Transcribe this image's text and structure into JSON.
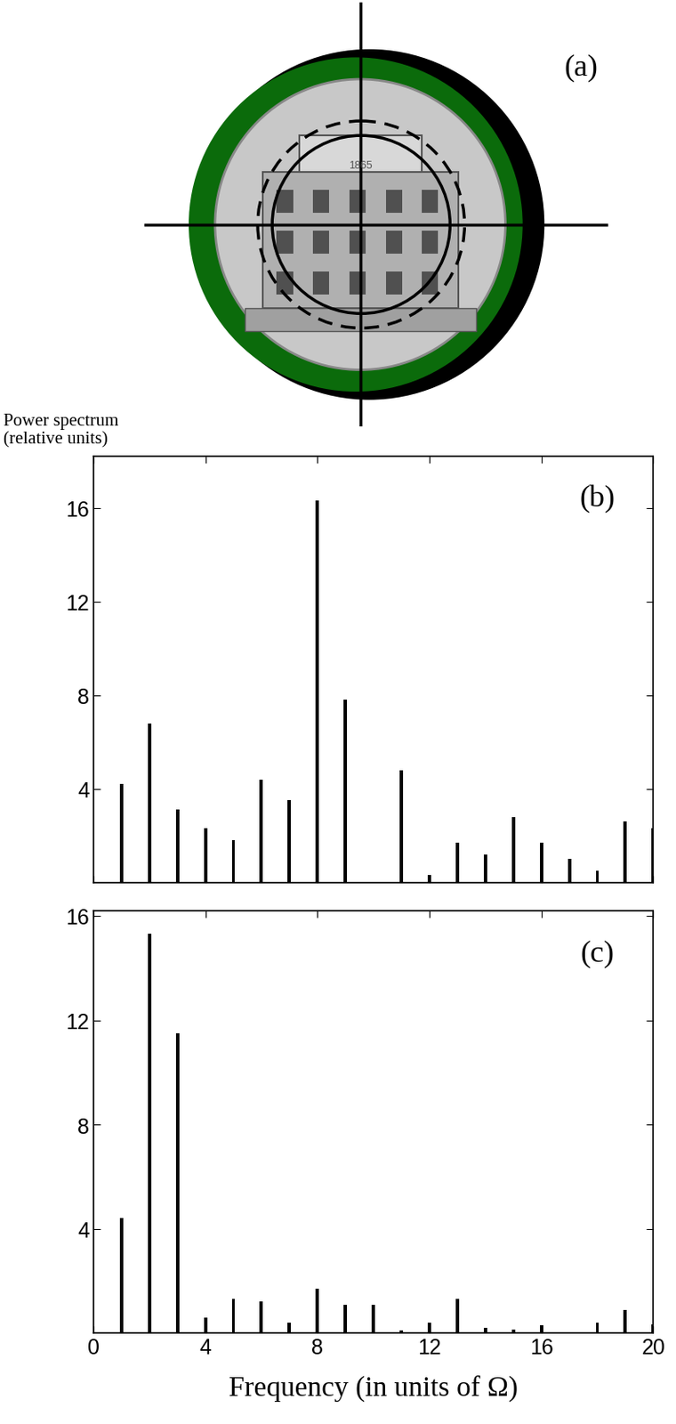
{
  "panel_a": {
    "annotation": "(a)",
    "text": "1865"
  },
  "chart_data": [
    {
      "type": "bar",
      "annotation": "(b)",
      "y_label": "Power spectrum\n(relative units)",
      "x": [
        1,
        2,
        3,
        4,
        5,
        6,
        7,
        8,
        9,
        10,
        11,
        12,
        13,
        14,
        15,
        16,
        17,
        18,
        19,
        20
      ],
      "values": [
        4.2,
        6.8,
        3.1,
        2.3,
        1.8,
        4.4,
        3.5,
        16.3,
        7.8,
        0,
        4.8,
        0.3,
        1.7,
        1.2,
        2.8,
        1.7,
        1.0,
        0.5,
        2.6,
        2.3
      ],
      "color": "#000000",
      "xlim": [
        0,
        20
      ],
      "xticks": [
        0,
        4,
        8,
        12,
        16,
        20
      ],
      "ylim": [
        0,
        18.2
      ],
      "yticks": [
        4,
        8,
        12,
        16
      ],
      "tick_labels": "y"
    },
    {
      "type": "bar",
      "annotation": "(c)",
      "x_label": "Frequency (in units of Ω)",
      "x": [
        1,
        2,
        3,
        4,
        5,
        6,
        7,
        8,
        9,
        10,
        11,
        12,
        13,
        14,
        15,
        16,
        17,
        18,
        19,
        20
      ],
      "values": [
        4.4,
        15.3,
        11.5,
        0.6,
        1.3,
        1.2,
        0.4,
        1.7,
        1.1,
        1.1,
        0.1,
        0.4,
        1.3,
        0.2,
        0.15,
        0.3,
        0,
        0.4,
        0.9,
        0.35
      ],
      "color": "#000000",
      "xlim": [
        0,
        20
      ],
      "xticks": [
        0,
        4,
        8,
        12,
        16,
        20
      ],
      "ylim": [
        0,
        16.2
      ],
      "yticks": [
        4,
        8,
        12,
        16
      ]
    }
  ]
}
